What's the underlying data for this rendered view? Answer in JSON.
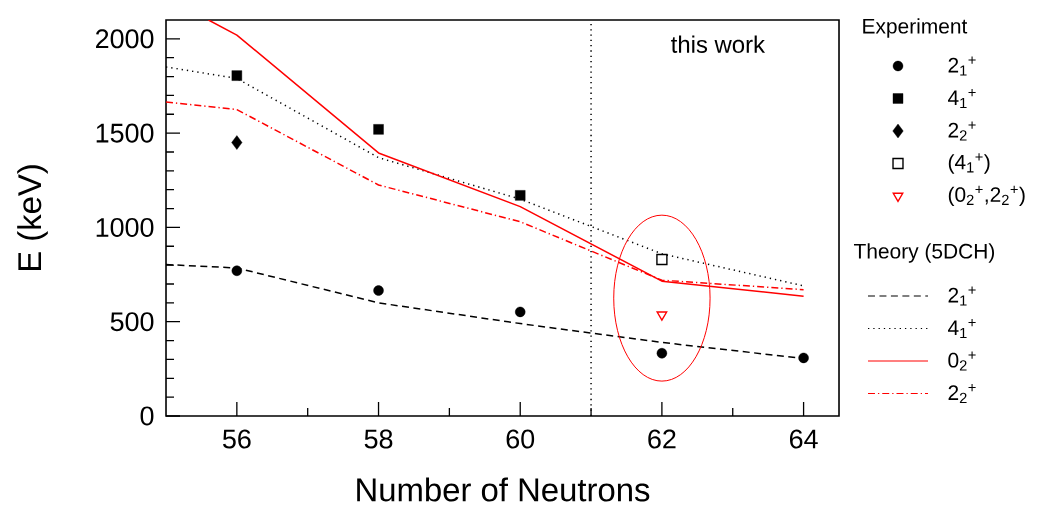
{
  "chart_data": {
    "type": "scatter",
    "xlabel": "Number of Neutrons",
    "ylabel": "E (keV)",
    "xlim": [
      55,
      64.5
    ],
    "ylim": [
      0,
      2100
    ],
    "xticks": [
      56,
      58,
      60,
      62,
      64
    ],
    "yticks": [
      0,
      500,
      1000,
      1500,
      2000
    ],
    "legend": "right",
    "legend_title": "Experiment",
    "annotations": [
      "this work",
      "Theory (5DCH)"
    ],
    "ref_lines": [
      {
        "axis": "x",
        "value": 61,
        "color": "#000000",
        "line_style": "dotted"
      }
    ],
    "series": [
      {
        "name": "2$_{1}$$^{+}$",
        "marker": "circle",
        "color": "#000000",
        "x": [
          56,
          58,
          60,
          62,
          64
        ],
        "values": [
          770,
          665,
          552,
          333,
          308
        ]
      },
      {
        "name": "4$_{1}$$^{+}$",
        "marker": "square",
        "color": "#000000",
        "x": [
          56,
          58,
          60
        ],
        "values": [
          1805,
          1520,
          1170
        ]
      },
      {
        "name": "2$_{2}$$^{+}$",
        "marker": "diamond",
        "color": "#000000",
        "x": [
          56
        ],
        "values": [
          1450
        ]
      },
      {
        "name": "(4$_{1}$$^{+}$)",
        "marker": "square-open",
        "color": "#000000",
        "x": [
          62
        ],
        "values": [
          830
        ]
      },
      {
        "name": "(0$_{2}$$^{+}$,2$_{2}$$^{+}$)",
        "marker": "triangle-down-open",
        "color": "#ff0000",
        "x": [
          62
        ],
        "values": [
          537
        ]
      },
      {
        "name": "2$_{1}$$^{+}$",
        "type": "line",
        "marker": "none",
        "line_style": "dashed",
        "color": "#000000",
        "x": [
          55,
          56,
          58,
          60,
          62,
          64
        ],
        "values": [
          803,
          785,
          600,
          490,
          390,
          305
        ]
      },
      {
        "name": "4$_{1}$$^{+}$",
        "type": "line",
        "marker": "none",
        "line_style": "dotted",
        "color": "#000000",
        "x": [
          55,
          56,
          58,
          60,
          62,
          64
        ],
        "values": [
          1851,
          1790,
          1370,
          1150,
          860,
          690
        ]
      },
      {
        "name": "0$_{2}$$^{+}$",
        "type": "line",
        "marker": "none",
        "line_style": "solid",
        "color": "#ff0000",
        "x": [
          55.6,
          56,
          58,
          60,
          62,
          64
        ],
        "values": [
          2100,
          2020,
          1395,
          1110,
          715,
          635
        ]
      },
      {
        "name": "2$_{2}$$^{+}$",
        "type": "line",
        "marker": "none",
        "line_style": "dashdot",
        "color": "#ff0000",
        "x": [
          55,
          56,
          58,
          60,
          62,
          64
        ],
        "values": [
          1665,
          1625,
          1225,
          1030,
          720,
          670
        ]
      }
    ]
  }
}
